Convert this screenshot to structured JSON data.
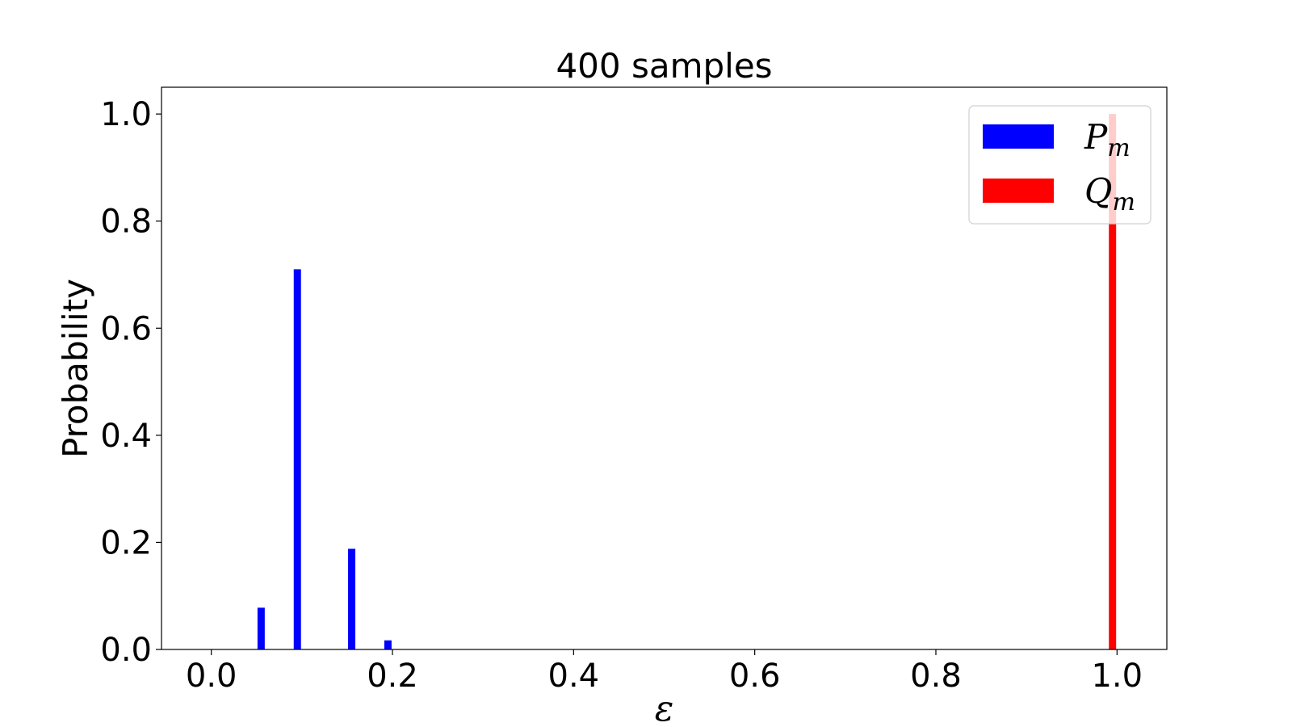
{
  "chart_data": {
    "type": "bar",
    "title": "400 samples",
    "xlabel": "ε",
    "ylabel": "Probability",
    "xlim": [
      -0.055,
      1.055
    ],
    "ylim": [
      0.0,
      1.05
    ],
    "xticks": [
      0.0,
      0.2,
      0.4,
      0.6,
      0.8,
      1.0
    ],
    "xtick_labels": [
      "0.0",
      "0.2",
      "0.4",
      "0.6",
      "0.8",
      "1.0"
    ],
    "yticks": [
      0.0,
      0.2,
      0.4,
      0.6,
      0.8,
      1.0
    ],
    "ytick_labels": [
      "0.0",
      "0.2",
      "0.4",
      "0.6",
      "0.8",
      "1.0"
    ],
    "bar_width": 0.008,
    "grid": false,
    "legend_position": "top-right",
    "series": [
      {
        "name": "P",
        "subscript": "m",
        "color": "#0000ff",
        "x": [
          0.055,
          0.095,
          0.155,
          0.195
        ],
        "values": [
          0.078,
          0.71,
          0.188,
          0.017
        ]
      },
      {
        "name": "Q",
        "subscript": "m",
        "color": "#ff0000",
        "x": [
          0.995
        ],
        "values": [
          1.0
        ]
      }
    ]
  }
}
